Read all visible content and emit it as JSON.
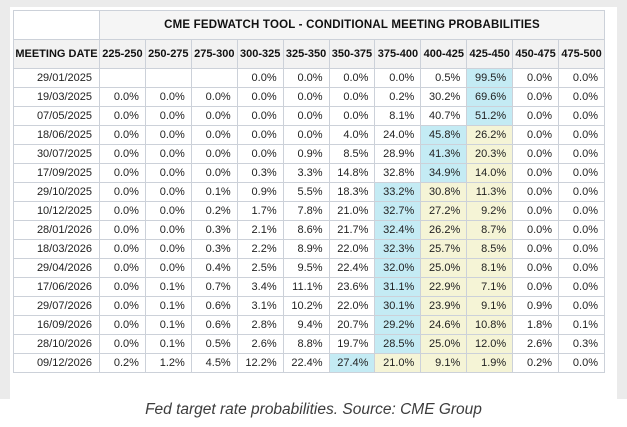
{
  "figure": {
    "caption": "Fed target rate probabilities. Source: CME Group"
  },
  "chart_data": {
    "type": "table",
    "title": "CME FEDWATCH TOOL - CONDITIONAL MEETING PROBABILITIES",
    "row_header": "MEETING DATE",
    "columns": [
      "225-250",
      "250-275",
      "275-300",
      "300-325",
      "325-350",
      "350-375",
      "375-400",
      "400-425",
      "425-450",
      "450-475",
      "475-500"
    ],
    "highlighted_column": "425-450",
    "rows": [
      {
        "date": "29/01/2025",
        "values": [
          "",
          "",
          "",
          "0.0%",
          "0.0%",
          "0.0%",
          "0.0%",
          "0.5%",
          "99.5%",
          "0.0%",
          "0.0%"
        ],
        "highlights": {
          "8": "cyan"
        }
      },
      {
        "date": "19/03/2025",
        "values": [
          "0.0%",
          "0.0%",
          "0.0%",
          "0.0%",
          "0.0%",
          "0.0%",
          "0.2%",
          "30.2%",
          "69.6%",
          "0.0%",
          "0.0%"
        ],
        "highlights": {
          "8": "cyan"
        }
      },
      {
        "date": "07/05/2025",
        "values": [
          "0.0%",
          "0.0%",
          "0.0%",
          "0.0%",
          "0.0%",
          "0.0%",
          "8.1%",
          "40.7%",
          "51.2%",
          "0.0%",
          "0.0%"
        ],
        "highlights": {
          "8": "cyan"
        }
      },
      {
        "date": "18/06/2025",
        "values": [
          "0.0%",
          "0.0%",
          "0.0%",
          "0.0%",
          "0.0%",
          "4.0%",
          "24.0%",
          "45.8%",
          "26.2%",
          "0.0%",
          "0.0%"
        ],
        "highlights": {
          "7": "cyan",
          "8": "yellow"
        }
      },
      {
        "date": "30/07/2025",
        "values": [
          "0.0%",
          "0.0%",
          "0.0%",
          "0.0%",
          "0.9%",
          "8.5%",
          "28.9%",
          "41.3%",
          "20.3%",
          "0.0%",
          "0.0%"
        ],
        "highlights": {
          "7": "cyan",
          "8": "yellow"
        }
      },
      {
        "date": "17/09/2025",
        "values": [
          "0.0%",
          "0.0%",
          "0.0%",
          "0.3%",
          "3.3%",
          "14.8%",
          "32.8%",
          "34.9%",
          "14.0%",
          "0.0%",
          "0.0%"
        ],
        "highlights": {
          "7": "cyan",
          "8": "yellow"
        }
      },
      {
        "date": "29/10/2025",
        "values": [
          "0.0%",
          "0.0%",
          "0.1%",
          "0.9%",
          "5.5%",
          "18.3%",
          "33.2%",
          "30.8%",
          "11.3%",
          "0.0%",
          "0.0%"
        ],
        "highlights": {
          "6": "cyan",
          "7": "yellow",
          "8": "yellow"
        }
      },
      {
        "date": "10/12/2025",
        "values": [
          "0.0%",
          "0.0%",
          "0.2%",
          "1.7%",
          "7.8%",
          "21.0%",
          "32.7%",
          "27.2%",
          "9.2%",
          "0.0%",
          "0.0%"
        ],
        "highlights": {
          "6": "cyan",
          "7": "yellow",
          "8": "yellow"
        }
      },
      {
        "date": "28/01/2026",
        "values": [
          "0.0%",
          "0.0%",
          "0.3%",
          "2.1%",
          "8.6%",
          "21.7%",
          "32.4%",
          "26.2%",
          "8.7%",
          "0.0%",
          "0.0%"
        ],
        "highlights": {
          "6": "cyan",
          "7": "yellow",
          "8": "yellow"
        }
      },
      {
        "date": "18/03/2026",
        "values": [
          "0.0%",
          "0.0%",
          "0.3%",
          "2.2%",
          "8.9%",
          "22.0%",
          "32.3%",
          "25.7%",
          "8.5%",
          "0.0%",
          "0.0%"
        ],
        "highlights": {
          "6": "cyan",
          "7": "yellow",
          "8": "yellow"
        }
      },
      {
        "date": "29/04/2026",
        "values": [
          "0.0%",
          "0.0%",
          "0.4%",
          "2.5%",
          "9.5%",
          "22.4%",
          "32.0%",
          "25.0%",
          "8.1%",
          "0.0%",
          "0.0%"
        ],
        "highlights": {
          "6": "cyan",
          "7": "yellow",
          "8": "yellow"
        }
      },
      {
        "date": "17/06/2026",
        "values": [
          "0.0%",
          "0.1%",
          "0.7%",
          "3.4%",
          "11.1%",
          "23.6%",
          "31.1%",
          "22.9%",
          "7.1%",
          "0.0%",
          "0.0%"
        ],
        "highlights": {
          "6": "cyan",
          "7": "yellow",
          "8": "yellow"
        }
      },
      {
        "date": "29/07/2026",
        "values": [
          "0.0%",
          "0.1%",
          "0.6%",
          "3.1%",
          "10.2%",
          "22.0%",
          "30.1%",
          "23.9%",
          "9.1%",
          "0.9%",
          "0.0%"
        ],
        "highlights": {
          "6": "cyan",
          "7": "yellow",
          "8": "yellow"
        }
      },
      {
        "date": "16/09/2026",
        "values": [
          "0.0%",
          "0.1%",
          "0.6%",
          "2.8%",
          "9.4%",
          "20.7%",
          "29.2%",
          "24.6%",
          "10.8%",
          "1.8%",
          "0.1%"
        ],
        "highlights": {
          "6": "cyan",
          "7": "yellow",
          "8": "yellow"
        }
      },
      {
        "date": "28/10/2026",
        "values": [
          "0.0%",
          "0.1%",
          "0.5%",
          "2.6%",
          "8.8%",
          "19.7%",
          "28.5%",
          "25.0%",
          "12.0%",
          "2.6%",
          "0.3%"
        ],
        "highlights": {
          "6": "cyan",
          "7": "yellow",
          "8": "yellow"
        }
      },
      {
        "date": "09/12/2026",
        "values": [
          "0.2%",
          "1.2%",
          "4.5%",
          "12.2%",
          "22.4%",
          "27.4%",
          "21.0%",
          "9.1%",
          "1.9%",
          "0.2%",
          "0.0%"
        ],
        "highlights": {
          "5": "cyan",
          "6": "yellow",
          "7": "yellow",
          "8": "yellow"
        }
      }
    ],
    "colors": {
      "highlight_cyan": "#c4ebf4",
      "highlight_yellow": "#f5f4d6",
      "header_bg": "#f2f2f2",
      "title_bg": "#f5f5f5",
      "header_highlight_bg": "#e9f3f8",
      "grid_border": "#ccd1d9",
      "outer_border": "#abafb6",
      "page_bg": "#ebebeb"
    }
  }
}
